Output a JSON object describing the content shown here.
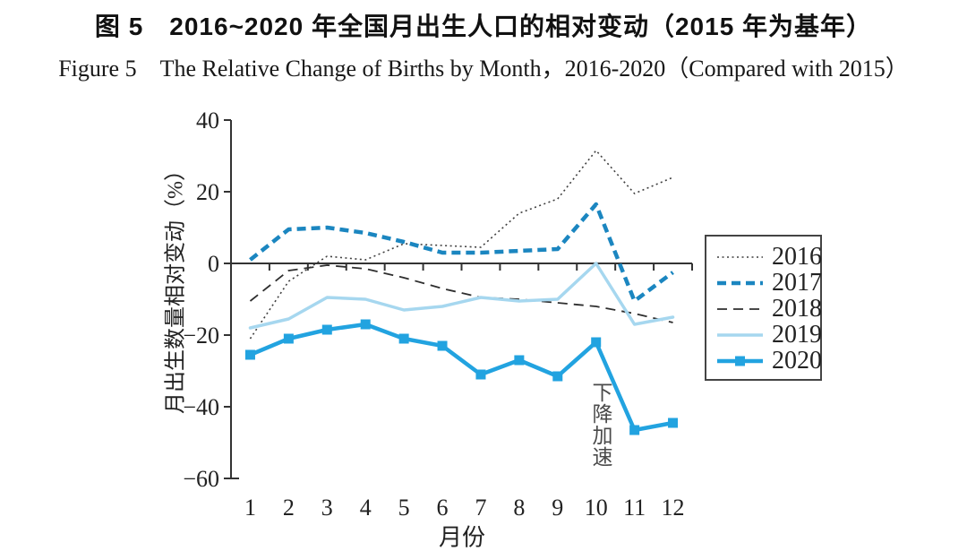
{
  "chart_data": {
    "type": "line",
    "title_cn": "图 5　2016~2020 年全国月出生人口的相对变动（2015 年为基年）",
    "title_en": "Figure 5　The Relative Change of Births by Month，2016-2020（Compared with 2015）",
    "xlabel": "月份",
    "ylabel": "月出生数量相对变动（%）",
    "x": [
      1,
      2,
      3,
      4,
      5,
      6,
      7,
      8,
      9,
      10,
      11,
      12
    ],
    "x_tick_labels": [
      "1",
      "2",
      "3",
      "4",
      "5",
      "6",
      "7",
      "8",
      "9",
      "10",
      "11",
      "12"
    ],
    "y_ticks": [
      40,
      20,
      0,
      -20,
      -40,
      -60
    ],
    "ylim": [
      -60,
      40
    ],
    "grid": false,
    "legend_position": "right",
    "axis_color": "#333333",
    "series": [
      {
        "name": "2016",
        "color": "#3f3f3f",
        "line_style": "dotted",
        "width": 1.6,
        "marker": "none",
        "values": [
          -21,
          -5,
          2,
          1,
          5.5,
          5,
          4.5,
          14,
          18,
          31.5,
          19.5,
          24
        ]
      },
      {
        "name": "2017",
        "color": "#1b86c0",
        "line_style": "dashed-bold",
        "width": 4.5,
        "marker": "none",
        "values": [
          1,
          9.5,
          10,
          8.5,
          6,
          3,
          3,
          3.5,
          4,
          16.5,
          -10.5,
          -2.5
        ]
      },
      {
        "name": "2018",
        "color": "#2e2e2e",
        "line_style": "dashed",
        "width": 1.8,
        "marker": "none",
        "values": [
          -10.5,
          -2,
          -0.5,
          -1.5,
          -4,
          -7,
          -9.5,
          -10,
          -11,
          -12,
          -14,
          -16.5
        ]
      },
      {
        "name": "2019",
        "color": "#a6d7ef",
        "line_style": "solid",
        "width": 3.5,
        "marker": "none",
        "values": [
          -18,
          -15.5,
          -9.5,
          -10,
          -13,
          -12,
          -9.5,
          -10.5,
          -10,
          0,
          -17,
          -15
        ]
      },
      {
        "name": "2020",
        "color": "#22a3e0",
        "line_style": "solid",
        "width": 4.5,
        "marker": "square",
        "values": [
          -25.5,
          -21,
          -18.5,
          -17,
          -21,
          -23,
          -31,
          -27,
          -31.5,
          -22,
          -46.5,
          -44.5
        ]
      }
    ],
    "annotation": {
      "text": "下降加速",
      "x_month": 10.1,
      "y_value": -33,
      "color": "#4a4a4a"
    }
  }
}
